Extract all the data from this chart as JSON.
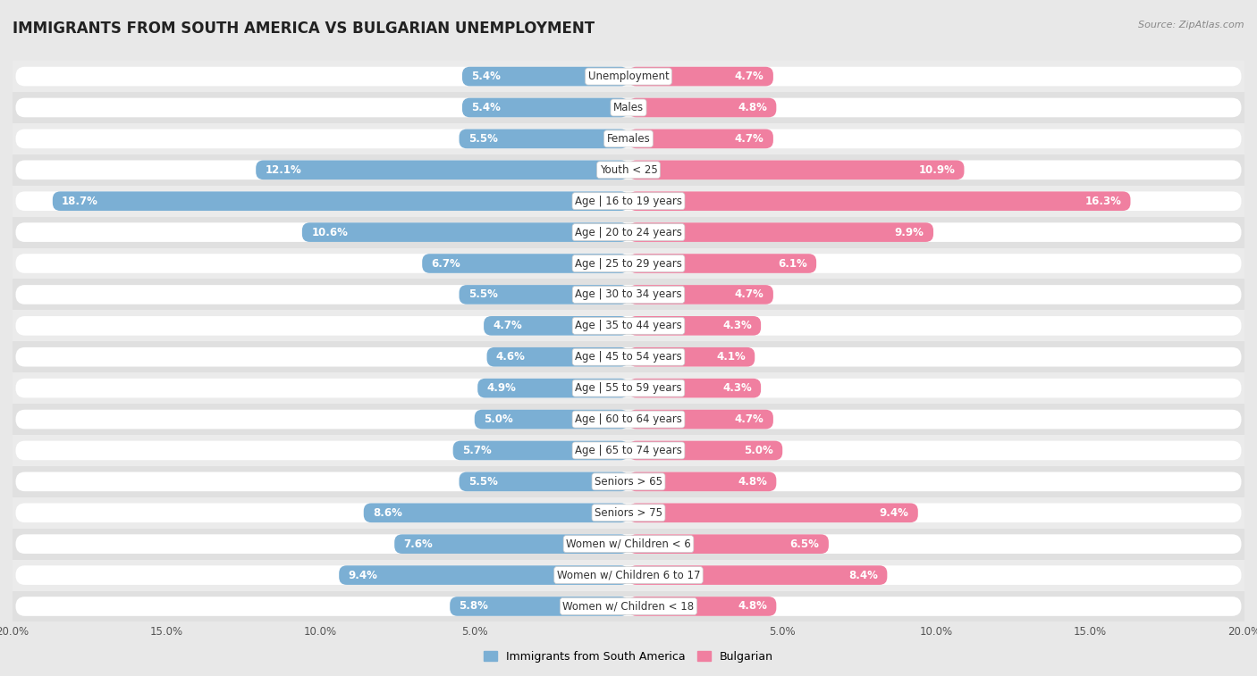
{
  "title": "IMMIGRANTS FROM SOUTH AMERICA VS BULGARIAN UNEMPLOYMENT",
  "source": "Source: ZipAtlas.com",
  "categories": [
    "Unemployment",
    "Males",
    "Females",
    "Youth < 25",
    "Age | 16 to 19 years",
    "Age | 20 to 24 years",
    "Age | 25 to 29 years",
    "Age | 30 to 34 years",
    "Age | 35 to 44 years",
    "Age | 45 to 54 years",
    "Age | 55 to 59 years",
    "Age | 60 to 64 years",
    "Age | 65 to 74 years",
    "Seniors > 65",
    "Seniors > 75",
    "Women w/ Children < 6",
    "Women w/ Children 6 to 17",
    "Women w/ Children < 18"
  ],
  "left_values": [
    5.4,
    5.4,
    5.5,
    12.1,
    18.7,
    10.6,
    6.7,
    5.5,
    4.7,
    4.6,
    4.9,
    5.0,
    5.7,
    5.5,
    8.6,
    7.6,
    9.4,
    5.8
  ],
  "right_values": [
    4.7,
    4.8,
    4.7,
    10.9,
    16.3,
    9.9,
    6.1,
    4.7,
    4.3,
    4.1,
    4.3,
    4.7,
    5.0,
    4.8,
    9.4,
    6.5,
    8.4,
    4.8
  ],
  "left_color": "#7bafd4",
  "right_color": "#f07fa0",
  "left_label": "Immigrants from South America",
  "right_label": "Bulgarian",
  "row_bg_color": "#e8e8e8",
  "bar_bg_color": "#f5f5f5",
  "white_bar_bg": "#ffffff",
  "max_val": 20.0,
  "label_fontsize": 8.5,
  "title_fontsize": 12,
  "source_fontsize": 8
}
